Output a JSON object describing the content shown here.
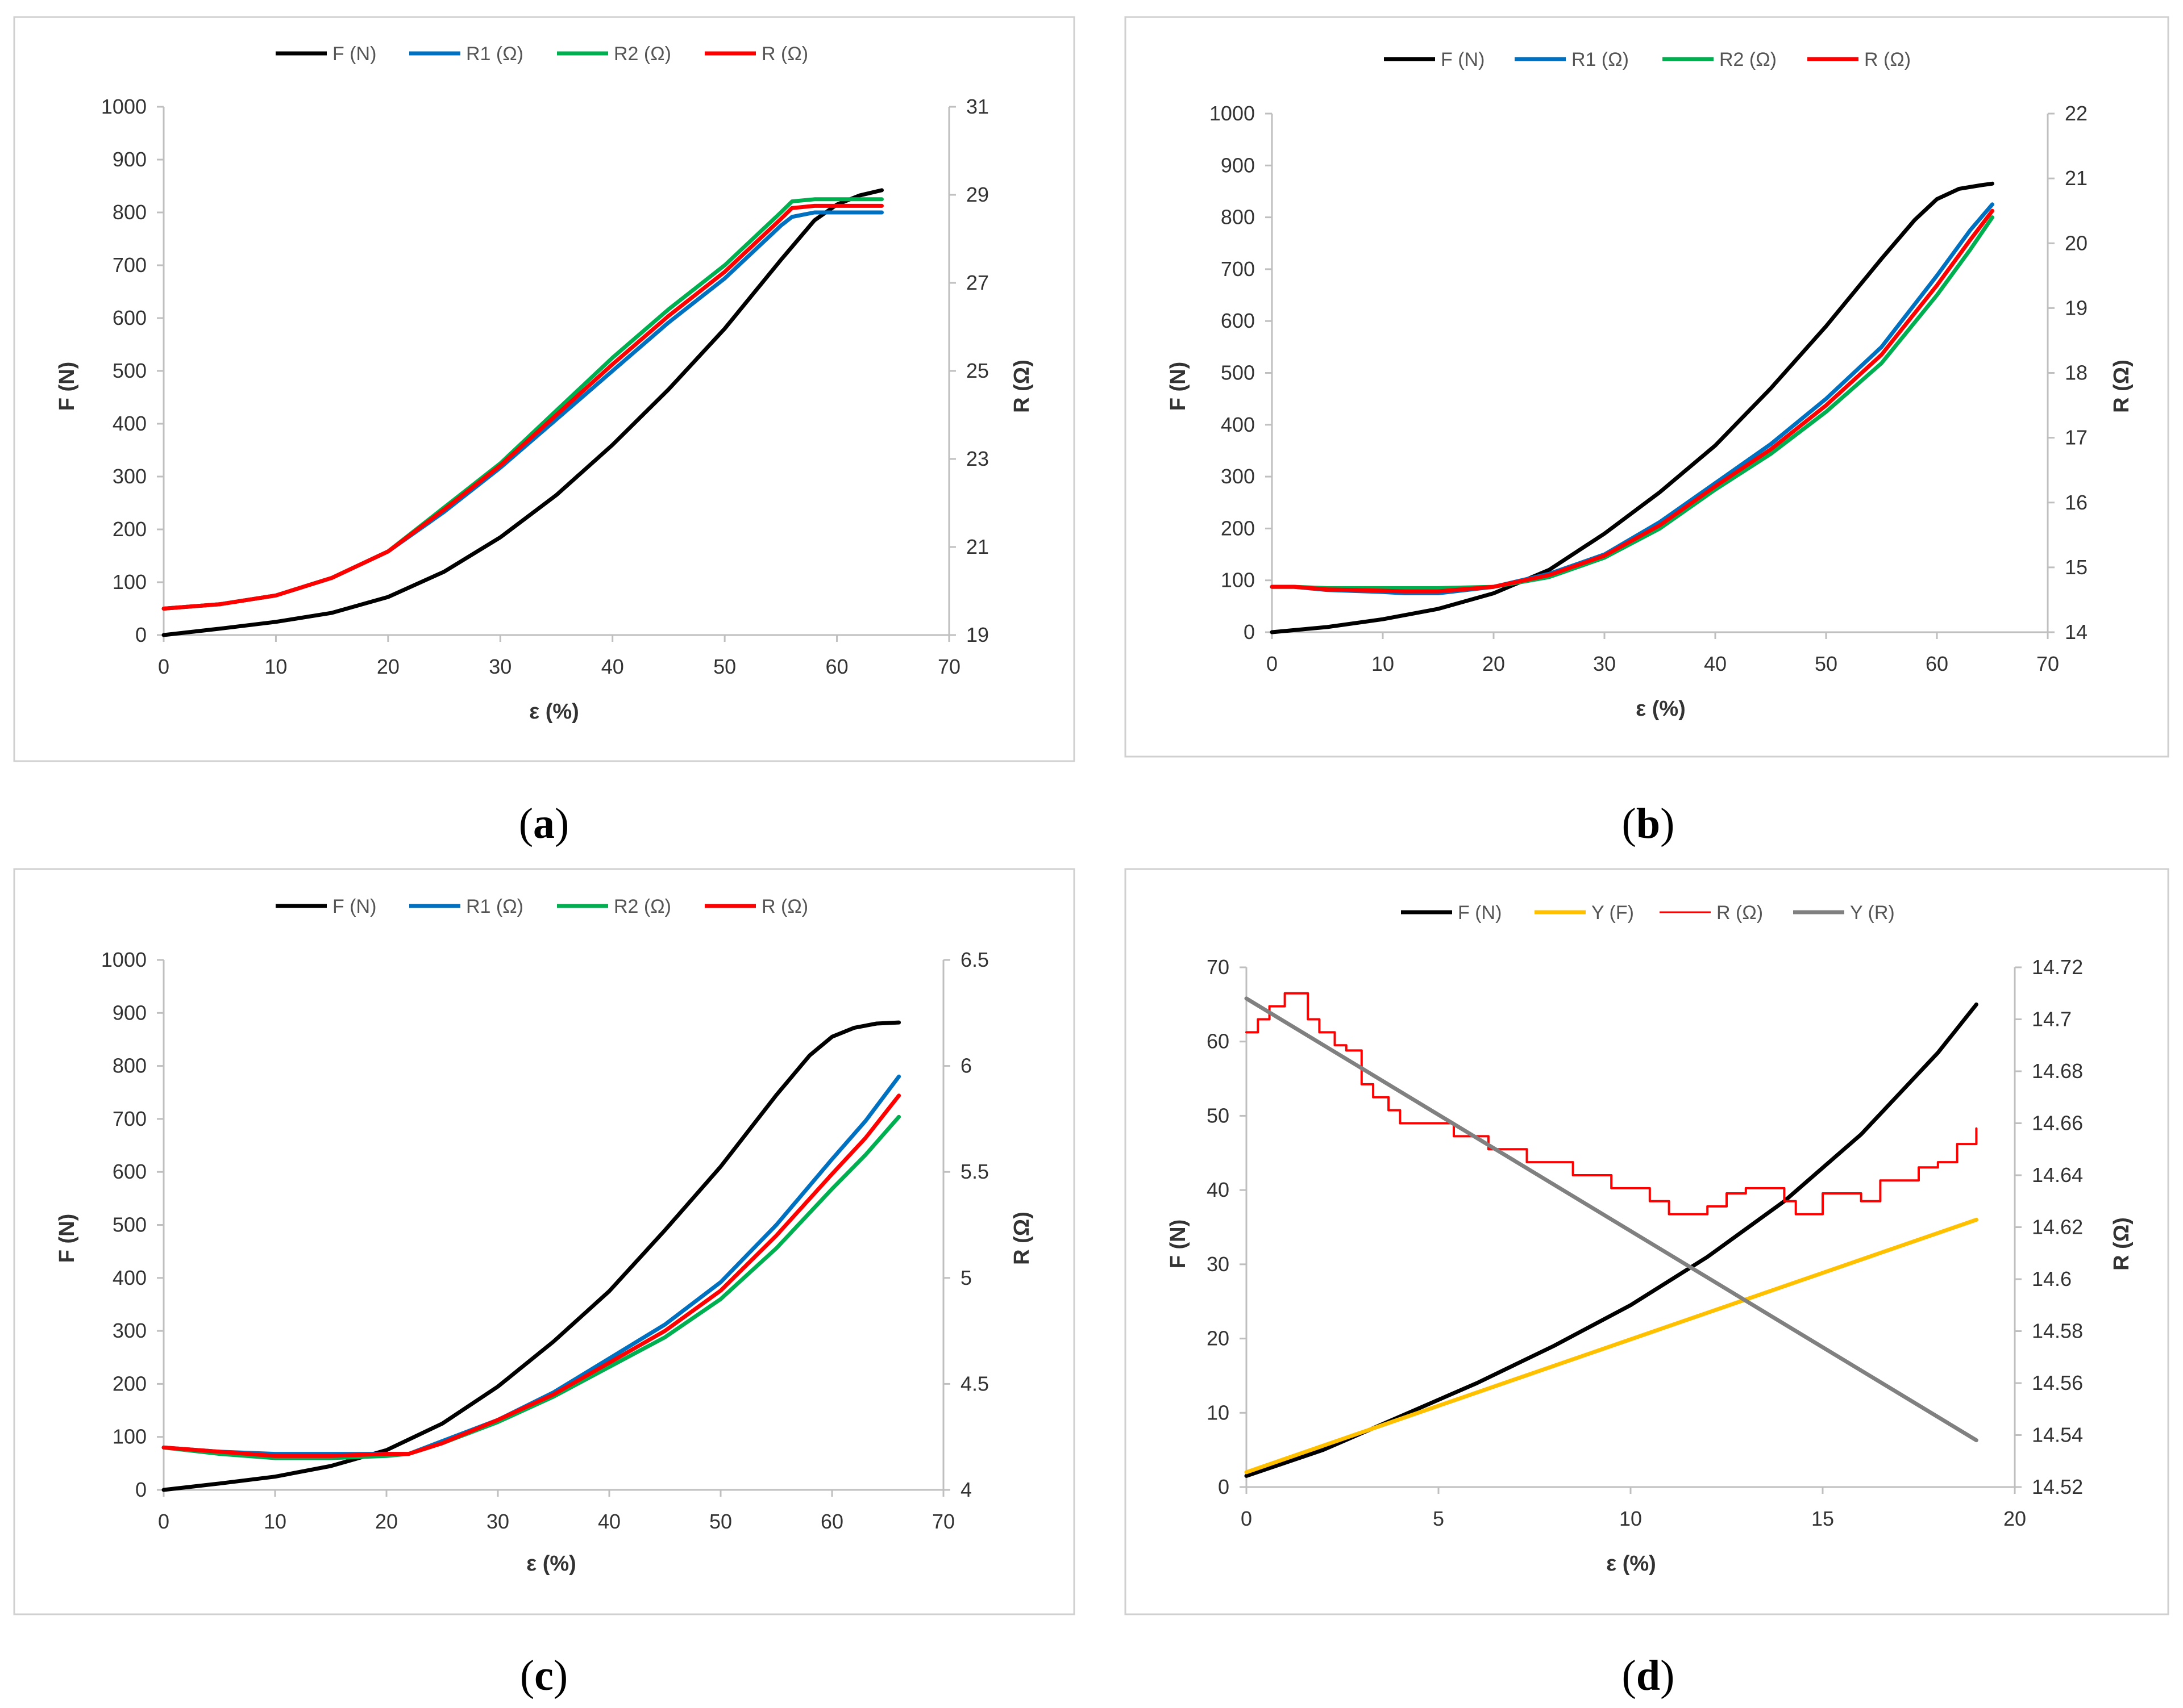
{
  "chart_data": [
    {
      "id": "a",
      "caption_letter": "a",
      "type": "line",
      "xlabel": "ε (%)",
      "ylabel_left": "F (N)",
      "ylabel_right": "R (Ω)",
      "xlim": [
        0,
        70
      ],
      "xticks": [
        0,
        10,
        20,
        30,
        40,
        50,
        60,
        70
      ],
      "ylim_left": [
        0,
        1000
      ],
      "yticks_left": [
        0,
        100,
        200,
        300,
        400,
        500,
        600,
        700,
        800,
        900,
        1000
      ],
      "ylim_right": [
        19,
        31
      ],
      "yticks_right": [
        19,
        21,
        23,
        25,
        27,
        29,
        31
      ],
      "legend": [
        {
          "name": "F (N)",
          "color": "#000000"
        },
        {
          "name": "R1 (Ω)",
          "color": "#0070C0"
        },
        {
          "name": "R2 (Ω)",
          "color": "#00B050"
        },
        {
          "name": "R (Ω)",
          "color": "#FF0000"
        }
      ],
      "series": [
        {
          "name": "F (N)",
          "axis": "left",
          "color": "#000000",
          "x": [
            0,
            5,
            10,
            15,
            20,
            25,
            30,
            35,
            40,
            45,
            50,
            55,
            58,
            60,
            62,
            64
          ],
          "y": [
            0,
            12,
            25,
            42,
            72,
            120,
            185,
            265,
            360,
            465,
            580,
            710,
            785,
            815,
            832,
            842
          ]
        },
        {
          "name": "R1 (Ω)",
          "axis": "right",
          "color": "#0070C0",
          "x": [
            0,
            5,
            10,
            15,
            20,
            25,
            30,
            35,
            40,
            45,
            50,
            55,
            56,
            58,
            60,
            62,
            64
          ],
          "y": [
            19.6,
            19.7,
            19.9,
            20.3,
            20.9,
            21.8,
            22.8,
            23.9,
            25.0,
            26.1,
            27.1,
            28.3,
            28.5,
            28.6,
            28.6,
            28.6,
            28.6
          ]
        },
        {
          "name": "R2 (Ω)",
          "axis": "right",
          "color": "#00B050",
          "x": [
            0,
            5,
            10,
            15,
            20,
            25,
            30,
            35,
            40,
            45,
            50,
            55,
            56,
            58,
            60,
            62,
            64
          ],
          "y": [
            19.6,
            19.7,
            19.9,
            20.3,
            20.9,
            21.9,
            22.9,
            24.1,
            25.3,
            26.4,
            27.4,
            28.6,
            28.85,
            28.9,
            28.9,
            28.9,
            28.9
          ]
        },
        {
          "name": "R (Ω)",
          "axis": "right",
          "color": "#FF0000",
          "x": [
            0,
            5,
            10,
            15,
            20,
            25,
            30,
            35,
            40,
            45,
            50,
            55,
            56,
            58,
            60,
            62,
            64
          ],
          "y": [
            19.6,
            19.7,
            19.9,
            20.3,
            20.9,
            21.85,
            22.85,
            24.0,
            25.15,
            26.25,
            27.25,
            28.45,
            28.7,
            28.75,
            28.75,
            28.75,
            28.75
          ]
        }
      ]
    },
    {
      "id": "b",
      "caption_letter": "b",
      "type": "line",
      "xlabel": "ε (%)",
      "ylabel_left": "F (N)",
      "ylabel_right": "R (Ω)",
      "xlim": [
        0,
        70
      ],
      "xticks": [
        0,
        10,
        20,
        30,
        40,
        50,
        60,
        70
      ],
      "ylim_left": [
        0,
        1000
      ],
      "yticks_left": [
        0,
        100,
        200,
        300,
        400,
        500,
        600,
        700,
        800,
        900,
        1000
      ],
      "ylim_right": [
        14,
        22
      ],
      "yticks_right": [
        14,
        15,
        16,
        17,
        18,
        19,
        20,
        21,
        22
      ],
      "legend": [
        {
          "name": "F (N)",
          "color": "#000000"
        },
        {
          "name": "R1 (Ω)",
          "color": "#0070C0"
        },
        {
          "name": "R2 (Ω)",
          "color": "#00B050"
        },
        {
          "name": "R (Ω)",
          "color": "#FF0000"
        }
      ],
      "series": [
        {
          "name": "F (N)",
          "axis": "left",
          "color": "#000000",
          "x": [
            0,
            5,
            10,
            15,
            20,
            25,
            30,
            35,
            40,
            45,
            50,
            55,
            58,
            60,
            62,
            64,
            65
          ],
          "y": [
            0,
            10,
            25,
            45,
            75,
            120,
            190,
            270,
            360,
            470,
            590,
            720,
            795,
            835,
            855,
            862,
            865
          ]
        },
        {
          "name": "R1 (Ω)",
          "axis": "right",
          "color": "#0070C0",
          "x": [
            0,
            2,
            5,
            10,
            12,
            15,
            20,
            25,
            30,
            35,
            40,
            45,
            50,
            55,
            60,
            63,
            65
          ],
          "y": [
            14.7,
            14.7,
            14.65,
            14.62,
            14.6,
            14.6,
            14.7,
            14.9,
            15.2,
            15.7,
            16.3,
            16.9,
            17.6,
            18.4,
            19.5,
            20.2,
            20.6
          ]
        },
        {
          "name": "R2 (Ω)",
          "axis": "right",
          "color": "#00B050",
          "x": [
            0,
            2,
            5,
            10,
            12,
            15,
            20,
            25,
            30,
            35,
            40,
            45,
            50,
            55,
            60,
            63,
            65
          ],
          "y": [
            14.7,
            14.7,
            14.68,
            14.68,
            14.68,
            14.68,
            14.7,
            14.85,
            15.15,
            15.6,
            16.2,
            16.75,
            17.4,
            18.15,
            19.2,
            19.9,
            20.4
          ]
        },
        {
          "name": "R (Ω)",
          "axis": "right",
          "color": "#FF0000",
          "x": [
            0,
            2,
            5,
            10,
            12,
            15,
            20,
            25,
            30,
            35,
            40,
            45,
            50,
            55,
            60,
            63,
            65
          ],
          "y": [
            14.7,
            14.7,
            14.66,
            14.64,
            14.63,
            14.63,
            14.7,
            14.88,
            15.18,
            15.65,
            16.25,
            16.82,
            17.5,
            18.28,
            19.35,
            20.05,
            20.5
          ]
        }
      ]
    },
    {
      "id": "c",
      "caption_letter": "c",
      "type": "line",
      "xlabel": "ε (%)",
      "ylabel_left": "F (N)",
      "ylabel_right": "R (Ω)",
      "xlim": [
        0,
        70
      ],
      "xticks": [
        0,
        10,
        20,
        30,
        40,
        50,
        60,
        70
      ],
      "ylim_left": [
        0,
        1000
      ],
      "yticks_left": [
        0,
        100,
        200,
        300,
        400,
        500,
        600,
        700,
        800,
        900,
        1000
      ],
      "ylim_right": [
        4,
        6.5
      ],
      "yticks_right": [
        "4",
        "4.5",
        "5",
        "5.5",
        "6",
        "6.5"
      ],
      "legend": [
        {
          "name": "F (N)",
          "color": "#000000"
        },
        {
          "name": "R1 (Ω)",
          "color": "#0070C0"
        },
        {
          "name": "R2 (Ω)",
          "color": "#00B050"
        },
        {
          "name": "R (Ω)",
          "color": "#FF0000"
        }
      ],
      "series": [
        {
          "name": "F (N)",
          "axis": "left",
          "color": "#000000",
          "x": [
            0,
            5,
            10,
            15,
            20,
            25,
            30,
            35,
            40,
            45,
            50,
            55,
            58,
            60,
            62,
            64,
            66
          ],
          "y": [
            0,
            12,
            25,
            45,
            75,
            125,
            195,
            280,
            375,
            490,
            610,
            745,
            820,
            855,
            872,
            880,
            882
          ]
        },
        {
          "name": "R1 (Ω)",
          "axis": "right",
          "color": "#0070C0",
          "x": [
            0,
            5,
            10,
            15,
            20,
            22,
            25,
            30,
            35,
            40,
            45,
            50,
            55,
            60,
            63,
            66
          ],
          "y": [
            4.2,
            4.18,
            4.17,
            4.17,
            4.17,
            4.17,
            4.23,
            4.33,
            4.46,
            4.62,
            4.78,
            4.98,
            5.25,
            5.56,
            5.74,
            5.95
          ]
        },
        {
          "name": "R2 (Ω)",
          "axis": "right",
          "color": "#00B050",
          "x": [
            0,
            5,
            10,
            15,
            20,
            22,
            25,
            30,
            35,
            40,
            45,
            50,
            55,
            60,
            63,
            66
          ],
          "y": [
            4.2,
            4.17,
            4.15,
            4.15,
            4.16,
            4.17,
            4.22,
            4.32,
            4.44,
            4.58,
            4.72,
            4.9,
            5.14,
            5.42,
            5.58,
            5.76
          ]
        },
        {
          "name": "R (Ω)",
          "axis": "right",
          "color": "#FF0000",
          "x": [
            0,
            5,
            10,
            15,
            20,
            22,
            25,
            30,
            35,
            40,
            45,
            50,
            55,
            60,
            63,
            66
          ],
          "y": [
            4.2,
            4.18,
            4.16,
            4.16,
            4.17,
            4.17,
            4.22,
            4.33,
            4.45,
            4.6,
            4.75,
            4.94,
            5.2,
            5.49,
            5.66,
            5.86
          ]
        }
      ]
    },
    {
      "id": "d",
      "caption_letter": "d",
      "type": "line",
      "xlabel": "ε (%)",
      "ylabel_left": "F (N)",
      "ylabel_right": "R (Ω)",
      "xlim": [
        0,
        20
      ],
      "xticks": [
        0,
        5,
        10,
        15,
        20
      ],
      "ylim_left": [
        0,
        70
      ],
      "yticks_left": [
        0,
        10,
        20,
        30,
        40,
        50,
        60,
        70
      ],
      "ylim_right": [
        14.52,
        14.72
      ],
      "yticks_right": [
        "14.52",
        "14.54",
        "14.56",
        "14.58",
        "14.6",
        "14.62",
        "14.64",
        "14.66",
        "14.68",
        "14.7",
        "14.72"
      ],
      "legend": [
        {
          "name": "F (N)",
          "color": "#000000"
        },
        {
          "name": "Y (F)",
          "color": "#FFC000"
        },
        {
          "name": "R (Ω)",
          "color": "#FF0000"
        },
        {
          "name": "Y (R)",
          "color": "#808080"
        }
      ],
      "series": [
        {
          "name": "F (N)",
          "axis": "left",
          "color": "#000000",
          "x": [
            0,
            2,
            4,
            6,
            8,
            10,
            12,
            14,
            16,
            18,
            19
          ],
          "y": [
            1.5,
            5,
            9.5,
            14,
            19,
            24.5,
            31,
            38.5,
            47.5,
            58.5,
            65
          ]
        },
        {
          "name": "Y (F)",
          "axis": "left",
          "color": "#FFC000",
          "x": [
            0,
            19
          ],
          "y": [
            2,
            36
          ]
        },
        {
          "name": "R (Ω)",
          "axis": "right",
          "color": "#FF0000",
          "step": true,
          "x": [
            0,
            0.3,
            0.6,
            1.0,
            1.6,
            1.9,
            2.3,
            2.6,
            3.0,
            3.3,
            3.7,
            4.0,
            4.5,
            5.0,
            5.4,
            5.8,
            6.3,
            6.8,
            7.3,
            8.0,
            8.5,
            9.0,
            9.5,
            10.0,
            10.5,
            11.0,
            11.5,
            12.0,
            12.5,
            13.0,
            13.5,
            14.0,
            14.3,
            14.7,
            15.0,
            15.7,
            16.0,
            16.5,
            17.0,
            17.5,
            18.0,
            18.5,
            19.0
          ],
          "y": [
            14.695,
            14.7,
            14.705,
            14.71,
            14.7,
            14.695,
            14.69,
            14.688,
            14.675,
            14.67,
            14.665,
            14.66,
            14.66,
            14.66,
            14.655,
            14.655,
            14.65,
            14.65,
            14.645,
            14.645,
            14.64,
            14.64,
            14.635,
            14.635,
            14.63,
            14.625,
            14.625,
            14.628,
            14.633,
            14.635,
            14.635,
            14.63,
            14.625,
            14.625,
            14.633,
            14.633,
            14.63,
            14.638,
            14.638,
            14.643,
            14.645,
            14.652,
            14.658
          ]
        },
        {
          "name": "Y (R)",
          "axis": "right",
          "color": "#808080",
          "x": [
            0,
            19
          ],
          "y": [
            14.708,
            14.538
          ]
        }
      ]
    }
  ]
}
